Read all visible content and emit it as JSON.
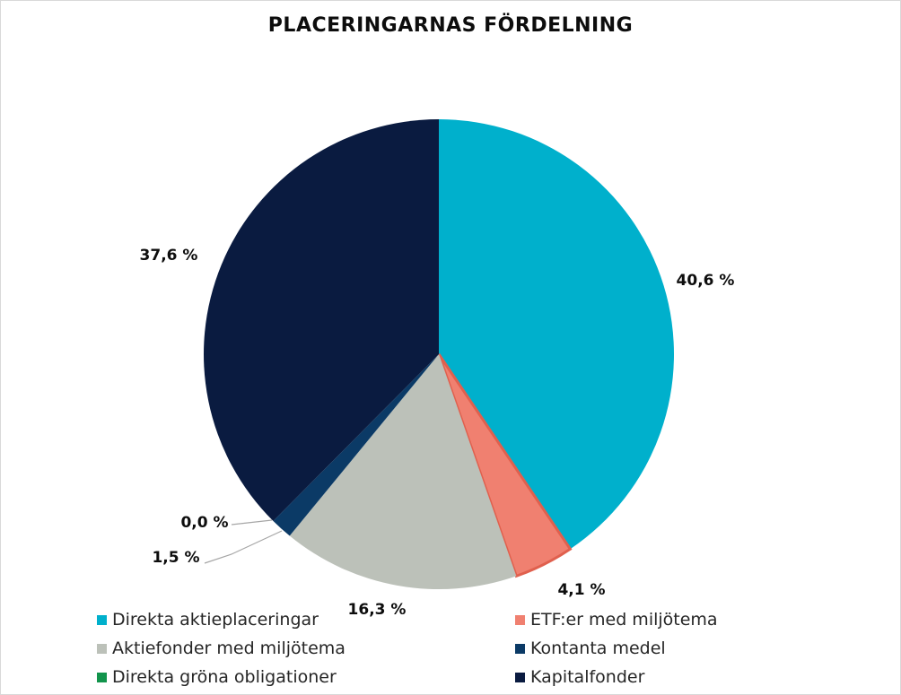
{
  "chart_data": {
    "type": "pie",
    "title": "PLACERINGARNAS FÖRDELNING",
    "slices": [
      {
        "name": "Direkta aktieplaceringar",
        "value": 40.6,
        "label": "40,6 %",
        "color": "#00b0cc"
      },
      {
        "name": "ETF:er med miljötema",
        "value": 4.1,
        "label": "4,1 %",
        "color": "#f08070"
      },
      {
        "name": "Aktiefonder med miljötema",
        "value": 16.3,
        "label": "16,3 %",
        "color": "#bcc1b9"
      },
      {
        "name": "Direkta gröna obligationer",
        "value": 0.0,
        "label": "0,0 %",
        "color": "#12944c"
      },
      {
        "name": "Kontanta medel",
        "value": 1.5,
        "label": "1,5 %",
        "color": "#0b3a66"
      },
      {
        "name": "Kapitalfonder",
        "value": 37.6,
        "label": "37,6 %",
        "color": "#0a1b40"
      }
    ],
    "legend": {
      "position": "bottom",
      "columns": [
        [
          "Direkta aktieplaceringar",
          "Aktiefonder med miljötema",
          "Direkta gröna obligationer"
        ],
        [
          "ETF:er med miljötema",
          "Kontanta medel",
          "Kapitalfonder"
        ]
      ]
    }
  }
}
